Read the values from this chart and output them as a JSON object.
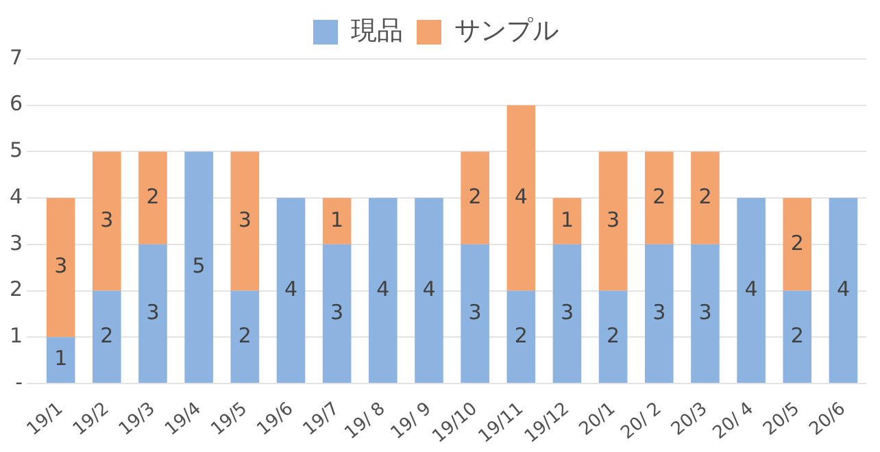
{
  "chart_data": {
    "type": "bar",
    "stacked": true,
    "categories": [
      "19/1",
      "19/2",
      "19/3",
      "19/4",
      "19/5",
      "19/6",
      "19/7",
      "19/ 8",
      "19/ 9",
      "19/10",
      "19/11",
      "19/12",
      "20/1",
      "20/ 2",
      "20/3",
      "20/ 4",
      "20/5",
      "20/6"
    ],
    "series": [
      {
        "name": "現品",
        "color": "#8db4e0",
        "values": [
          1,
          2,
          3,
          5,
          2,
          4,
          3,
          4,
          4,
          3,
          2,
          3,
          2,
          3,
          3,
          4,
          2,
          4
        ]
      },
      {
        "name": "サンプル",
        "color": "#f4a46e",
        "values": [
          3,
          3,
          2,
          null,
          3,
          null,
          1,
          null,
          null,
          2,
          4,
          1,
          3,
          2,
          2,
          null,
          2,
          null
        ]
      }
    ],
    "ylim": [
      0,
      7
    ],
    "yticks": [
      {
        "value": 0,
        "label": "-"
      },
      1,
      2,
      3,
      4,
      5,
      6,
      7
    ],
    "grid": "y",
    "legend": "top",
    "data_labels": true
  }
}
